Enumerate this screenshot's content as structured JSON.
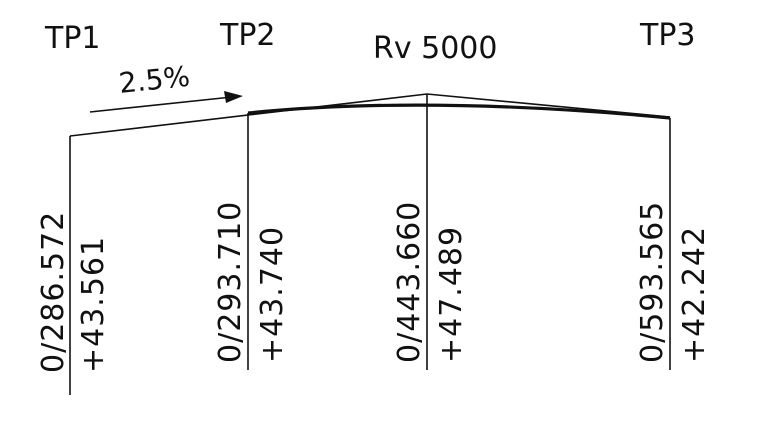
{
  "diagram": {
    "stroke_color": "#111111",
    "points": [
      {
        "name": "TP1",
        "chainage": "0/286.572",
        "elevation": "+43.561"
      },
      {
        "name": "TP2",
        "chainage": "0/293.710",
        "elevation": "+43.740"
      },
      {
        "name": "",
        "chainage": "0/443.660",
        "elevation": "+47.489"
      },
      {
        "name": "TP3",
        "chainage": "0/593.565",
        "elevation": "+42.242"
      }
    ],
    "curve_label": "Rv 5000",
    "grade_label": "2.5%"
  }
}
